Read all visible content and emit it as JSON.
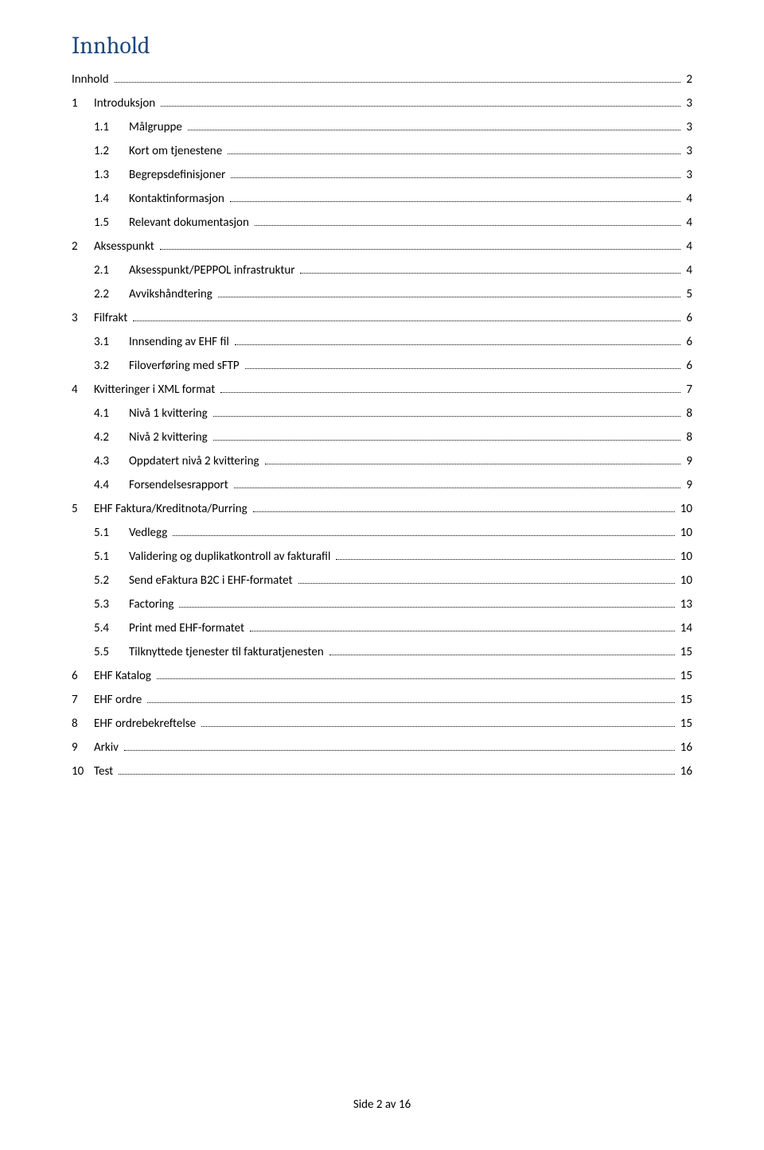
{
  "title": "Innhold",
  "footer": "Side 2 av 16",
  "entries": [
    {
      "indent": 0,
      "num": "",
      "label": "Innhold",
      "page": "2"
    },
    {
      "indent": 0,
      "num": "1",
      "label": "Introduksjon",
      "page": "3"
    },
    {
      "indent": 1,
      "num": "1.1",
      "label": "Målgruppe",
      "page": "3"
    },
    {
      "indent": 1,
      "num": "1.2",
      "label": "Kort om tjenestene",
      "page": "3"
    },
    {
      "indent": 1,
      "num": "1.3",
      "label": "Begrepsdefinisjoner",
      "page": "3"
    },
    {
      "indent": 1,
      "num": "1.4",
      "label": "Kontaktinformasjon",
      "page": "4"
    },
    {
      "indent": 1,
      "num": "1.5",
      "label": "Relevant dokumentasjon",
      "page": "4"
    },
    {
      "indent": 0,
      "num": "2",
      "label": "Aksesspunkt",
      "page": "4"
    },
    {
      "indent": 1,
      "num": "2.1",
      "label": "Aksesspunkt/PEPPOL infrastruktur",
      "page": "4"
    },
    {
      "indent": 1,
      "num": "2.2",
      "label": "Avvikshåndtering",
      "page": "5"
    },
    {
      "indent": 0,
      "num": "3",
      "label": "Filfrakt",
      "page": "6"
    },
    {
      "indent": 1,
      "num": "3.1",
      "label": "Innsending av EHF fil",
      "page": "6"
    },
    {
      "indent": 1,
      "num": "3.2",
      "label": "Filoverføring med sFTP",
      "page": "6"
    },
    {
      "indent": 0,
      "num": "4",
      "label": "Kvitteringer i XML format",
      "page": "7"
    },
    {
      "indent": 1,
      "num": "4.1",
      "label": "Nivå 1 kvittering",
      "page": "8"
    },
    {
      "indent": 1,
      "num": "4.2",
      "label": "Nivå 2 kvittering",
      "page": "8"
    },
    {
      "indent": 1,
      "num": "4.3",
      "label": "Oppdatert nivå 2 kvittering",
      "page": "9"
    },
    {
      "indent": 1,
      "num": "4.4",
      "label": "Forsendelsesrapport",
      "page": "9"
    },
    {
      "indent": 0,
      "num": "5",
      "label": "EHF Faktura/Kreditnota/Purring",
      "page": "10"
    },
    {
      "indent": 1,
      "num": "5.1",
      "label": "Vedlegg",
      "page": "10"
    },
    {
      "indent": 1,
      "num": "5.1",
      "label": "Validering og duplikatkontroll av fakturafil",
      "page": "10"
    },
    {
      "indent": 1,
      "num": "5.2",
      "label": "Send eFaktura B2C i EHF-formatet",
      "page": "10"
    },
    {
      "indent": 1,
      "num": "5.3",
      "label": "Factoring",
      "page": "13"
    },
    {
      "indent": 1,
      "num": "5.4",
      "label": "Print med EHF-formatet",
      "page": "14"
    },
    {
      "indent": 1,
      "num": "5.5",
      "label": "Tilknyttede tjenester til fakturatjenesten",
      "page": "15"
    },
    {
      "indent": 0,
      "num": "6",
      "label": "EHF Katalog",
      "page": "15"
    },
    {
      "indent": 0,
      "num": "7",
      "label": "EHF ordre",
      "page": "15"
    },
    {
      "indent": 0,
      "num": "8",
      "label": "EHF ordrebekreftelse",
      "page": "15"
    },
    {
      "indent": 0,
      "num": "9",
      "label": "Arkiv",
      "page": "16"
    },
    {
      "indent": 0,
      "num": "10",
      "label": "Test",
      "page": "16"
    }
  ]
}
